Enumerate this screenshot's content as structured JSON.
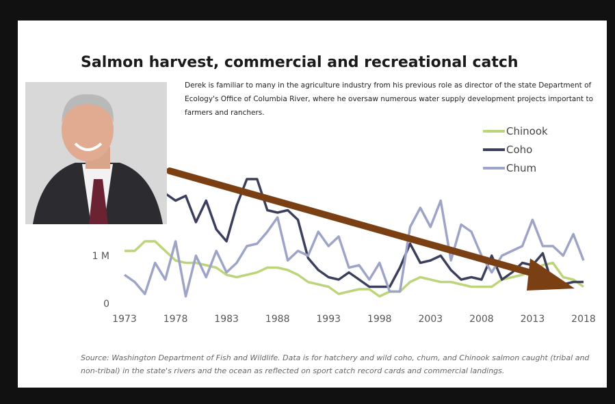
{
  "chart_data": {
    "type": "line",
    "title": "Salmon harvest, commercial and recreational catch",
    "description": [
      "Derek is familiar to many in the agriculture industry from his previous role as director of the state Department of",
      "Ecology's Office of Columbia River, where he oversaw numerous water supply development projects important to",
      "farmers and ranchers."
    ],
    "source": [
      "Source: Washington Department of Fish and Wildlife. Data is for hatchery and wild coho, chum, and Chinook salmon caught (tribal and",
      "non-tribal) in the state's rivers and the ocean as reflected on sport catch record cards and commercial landings."
    ],
    "x": [
      1973,
      1974,
      1975,
      1976,
      1977,
      1978,
      1979,
      1980,
      1981,
      1982,
      1983,
      1984,
      1985,
      1986,
      1987,
      1988,
      1989,
      1990,
      1991,
      1992,
      1993,
      1994,
      1995,
      1996,
      1997,
      1998,
      1999,
      2000,
      2001,
      2002,
      2003,
      2004,
      2005,
      2006,
      2007,
      2008,
      2009,
      2010,
      2011,
      2012,
      2013,
      2014,
      2015,
      2016,
      2017,
      2018
    ],
    "series": [
      {
        "name": "Chinook",
        "color": "#bcd47a",
        "values": [
          1.1,
          1.1,
          1.3,
          1.3,
          1.1,
          0.9,
          0.85,
          0.85,
          0.8,
          0.75,
          0.6,
          0.55,
          0.6,
          0.65,
          0.75,
          0.75,
          0.7,
          0.6,
          0.45,
          0.4,
          0.35,
          0.2,
          0.25,
          0.3,
          0.3,
          0.15,
          0.25,
          0.25,
          0.45,
          0.55,
          0.5,
          0.45,
          0.45,
          0.4,
          0.35,
          0.35,
          0.35,
          0.5,
          0.55,
          0.6,
          0.7,
          0.8,
          0.85,
          0.55,
          0.5,
          0.35
        ]
      },
      {
        "name": "Coho",
        "color": "#3b3f5c",
        "values": [
          null,
          null,
          null,
          null,
          2.3,
          2.15,
          2.25,
          1.7,
          2.15,
          1.55,
          1.3,
          2.05,
          2.6,
          2.6,
          1.95,
          1.9,
          1.95,
          1.75,
          0.95,
          0.7,
          0.55,
          0.5,
          0.65,
          0.5,
          0.35,
          0.35,
          0.35,
          0.75,
          1.25,
          0.85,
          0.9,
          1.0,
          0.7,
          0.5,
          0.55,
          0.5,
          1.0,
          0.5,
          0.65,
          0.85,
          0.8,
          1.05,
          0.35,
          0.4,
          0.45,
          0.45
        ]
      },
      {
        "name": "Chum",
        "color": "#9ea4c8",
        "values": [
          0.6,
          0.45,
          0.2,
          0.85,
          0.5,
          1.3,
          0.15,
          1.0,
          0.55,
          1.1,
          0.65,
          0.85,
          1.2,
          1.25,
          1.5,
          1.8,
          0.9,
          1.1,
          1.0,
          1.5,
          1.2,
          1.4,
          0.75,
          0.8,
          0.5,
          0.85,
          0.25,
          0.25,
          1.6,
          2.0,
          1.6,
          2.15,
          0.9,
          1.65,
          1.5,
          1.0,
          0.65,
          1.0,
          1.1,
          1.2,
          1.75,
          1.2,
          1.2,
          1.0,
          1.45,
          0.9
        ]
      }
    ],
    "xlim": [
      1973,
      2018
    ],
    "xticks": [
      1973,
      1978,
      1983,
      1988,
      1993,
      1998,
      2003,
      2008,
      2013,
      2018
    ],
    "ylim": [
      0,
      3.6
    ],
    "yticks": [
      0,
      {
        "value": 1,
        "label": "1 M"
      }
    ],
    "grid": false,
    "legend": "top-right"
  }
}
